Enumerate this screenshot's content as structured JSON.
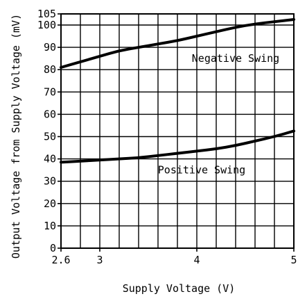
{
  "chart_data": {
    "type": "line",
    "title": "",
    "xlabel": "Supply Voltage (V)",
    "ylabel": "Output Voltage from Supply Voltage (mV)",
    "xlim": [
      2.6,
      5.0
    ],
    "ylim": [
      0,
      105
    ],
    "x_ticks": [
      2.6,
      3,
      4,
      5
    ],
    "x_tick_labels": [
      "2.6",
      "3",
      "4",
      "5"
    ],
    "y_ticks": [
      0,
      10,
      20,
      30,
      40,
      50,
      60,
      70,
      80,
      90,
      100,
      105
    ],
    "y_tick_labels": [
      "0",
      "10",
      "20",
      "30",
      "40",
      "50",
      "60",
      "70",
      "80",
      "90",
      "100",
      "105"
    ],
    "grid": true,
    "series": [
      {
        "name": "Negative Swing",
        "x": [
          2.6,
          2.8,
          3.0,
          3.2,
          3.4,
          3.6,
          3.8,
          4.0,
          4.2,
          4.4,
          4.6,
          4.8,
          5.0
        ],
        "y": [
          81,
          83.5,
          86,
          88.5,
          90,
          91.5,
          93,
          95,
          97,
          99,
          100.5,
          101.5,
          102.5
        ]
      },
      {
        "name": "Positive Swing",
        "x": [
          2.6,
          2.8,
          3.0,
          3.2,
          3.4,
          3.6,
          3.8,
          4.0,
          4.2,
          4.4,
          4.6,
          4.8,
          5.0
        ],
        "y": [
          38.5,
          39,
          39.5,
          40,
          40.5,
          41.5,
          42.5,
          43.5,
          44.5,
          46,
          48,
          50,
          52.5
        ]
      }
    ],
    "annotations": [
      {
        "text": "Negative Swing",
        "x": 4.4,
        "y": 85
      },
      {
        "text": "Positive Swing",
        "x": 4.05,
        "y": 35
      }
    ]
  }
}
